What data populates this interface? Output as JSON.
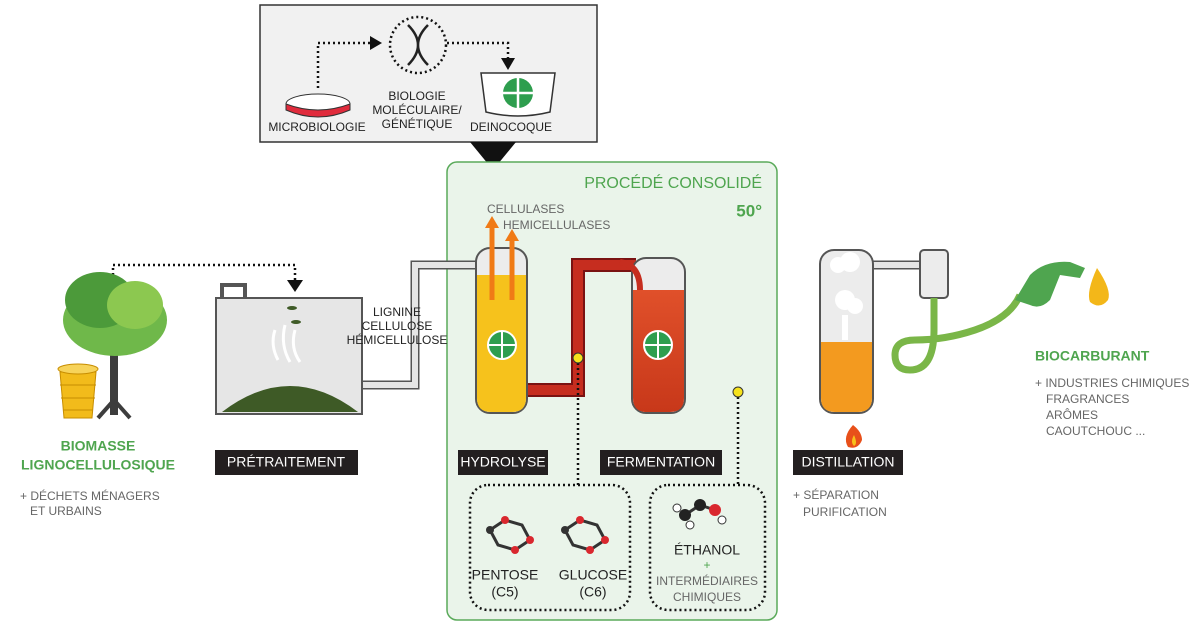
{
  "research": {
    "steps": [
      {
        "label": [
          "MICROBIOLOGIE"
        ]
      },
      {
        "label": [
          "BIOLOGIE",
          "MOLÉCULAIRE/",
          "GÉNÉTIQUE"
        ]
      },
      {
        "label": [
          "DEINOCOQUE"
        ]
      }
    ]
  },
  "process": {
    "title": "PROCÉDÉ CONSOLIDÉ",
    "temperature": "50°",
    "enzymes": [
      "CELLULASES",
      "HEMICELLULASES"
    ]
  },
  "pretreatment_outputs": [
    "LIGNINE",
    "CELLULOSE",
    "HÉMICELLULOSE"
  ],
  "stages": [
    "PRÉTRAITEMENT",
    "HYDROLYSE",
    "FERMENTATION",
    "DISTILLATION"
  ],
  "biomass": {
    "title": [
      "BIOMASSE",
      "LIGNOCELLULOSIQUE"
    ],
    "note": [
      "+ DÉCHETS MÉNAGERS",
      "ET URBAINS"
    ]
  },
  "distillation_note": [
    "+ SÉPARATION",
    "PURIFICATION"
  ],
  "product": {
    "title": "BIOCARBURANT",
    "note": [
      "+ INDUSTRIES CHIMIQUES",
      "FRAGRANCES",
      "ARÔMES",
      "CAOUTCHOUC ..."
    ]
  },
  "sugars": [
    {
      "name": "PENTOSE",
      "formula": "(C5)"
    },
    {
      "name": "GLUCOSE",
      "formula": "(C6)"
    }
  ],
  "ethanol": {
    "name": "ÉTHANOL",
    "plus": "+",
    "note": [
      "INTERMÉDIAIRES",
      "CHIMIQUES"
    ]
  }
}
